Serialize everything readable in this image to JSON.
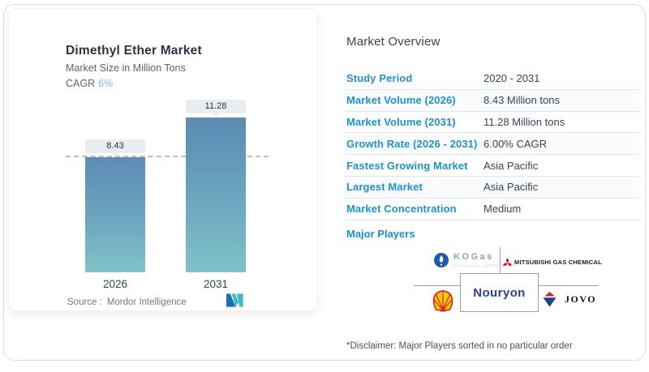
{
  "chart_panel": {
    "title": "Dimethyl Ether Market",
    "subtitle": "Market Size in Million Tons",
    "cagr_label": "CAGR",
    "cagr_value": "6%",
    "source_label": "Source :",
    "source_value": "Mordor Intelligence"
  },
  "chart_data": {
    "type": "bar",
    "title": "Dimethyl Ether Market",
    "ylabel": "Market Size in Million Tons",
    "categories": [
      "2026",
      "2031"
    ],
    "values": [
      8.43,
      11.28
    ],
    "data_labels": [
      "8.43",
      "11.28"
    ],
    "reference_line_value": 8.43,
    "ylim": [
      0,
      12.5
    ],
    "grid": false,
    "bar_gradient_top": "#5c8bb4",
    "bar_gradient_bottom": "#7fc3c7"
  },
  "overview": {
    "title": "Market Overview",
    "rows": [
      {
        "label": "Study Period",
        "value": "2020 - 2031"
      },
      {
        "label": "Market Volume (2026)",
        "value": "8.43 Million tons"
      },
      {
        "label": "Market Volume (2031)",
        "value": "11.28 Million tons"
      },
      {
        "label": "Growth Rate (2026 - 2031)",
        "value": "6.00% CAGR"
      },
      {
        "label": "Fastest Growing Market",
        "value": "Asia Pacific"
      },
      {
        "label": "Largest Market",
        "value": "Asia Pacific"
      },
      {
        "label": "Market Concentration",
        "value": "Medium"
      }
    ],
    "major_players_label": "Major Players",
    "disclaimer": "*Disclaimer: Major Players sorted in no particular order"
  },
  "logos": {
    "kogas_name": "KOGas",
    "kogas_sub": "KOREA GAS CORPORATION",
    "mitsubishi_name": "MITSUBISHI GAS CHEMICAL",
    "nouryon_name": "Nouryon",
    "jovo_name": "JOVO"
  },
  "colors": {
    "accent_blue": "#1e93c6",
    "text_dark": "#3a4450",
    "kogas_blue": "#1e5bac",
    "mitsubishi_red": "#e60012",
    "nouryon_blue": "#2a3f8d",
    "shell_yellow": "#fbce07",
    "shell_red": "#dd1d21",
    "jovo_red": "#d2232a",
    "jovo_blue": "#1b3f8f",
    "mi_logo_blue": "#1d70b7",
    "mi_logo_teal": "#41b9c8"
  }
}
